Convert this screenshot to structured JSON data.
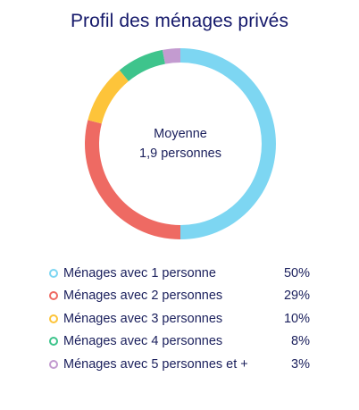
{
  "title": "Profil des ménages privés",
  "center": {
    "line1": "Moyenne",
    "line2": "1,9 personnes"
  },
  "chart_data": {
    "type": "pie",
    "title": "Profil des ménages privés",
    "categories": [
      "Ménages avec 1 personne",
      "Ménages avec 2 personnes",
      "Ménages avec 3 personnes",
      "Ménages avec 4 personnes",
      "Ménages avec 5 personnes et +"
    ],
    "values": [
      50,
      29,
      10,
      8,
      3
    ],
    "value_labels": [
      "50%",
      "29%",
      "10%",
      "8%",
      "3%"
    ],
    "colors": [
      "#7dd6f2",
      "#ee6a63",
      "#fdc43a",
      "#3ec48c",
      "#c39bd0"
    ],
    "donut": true,
    "legend_position": "bottom"
  }
}
